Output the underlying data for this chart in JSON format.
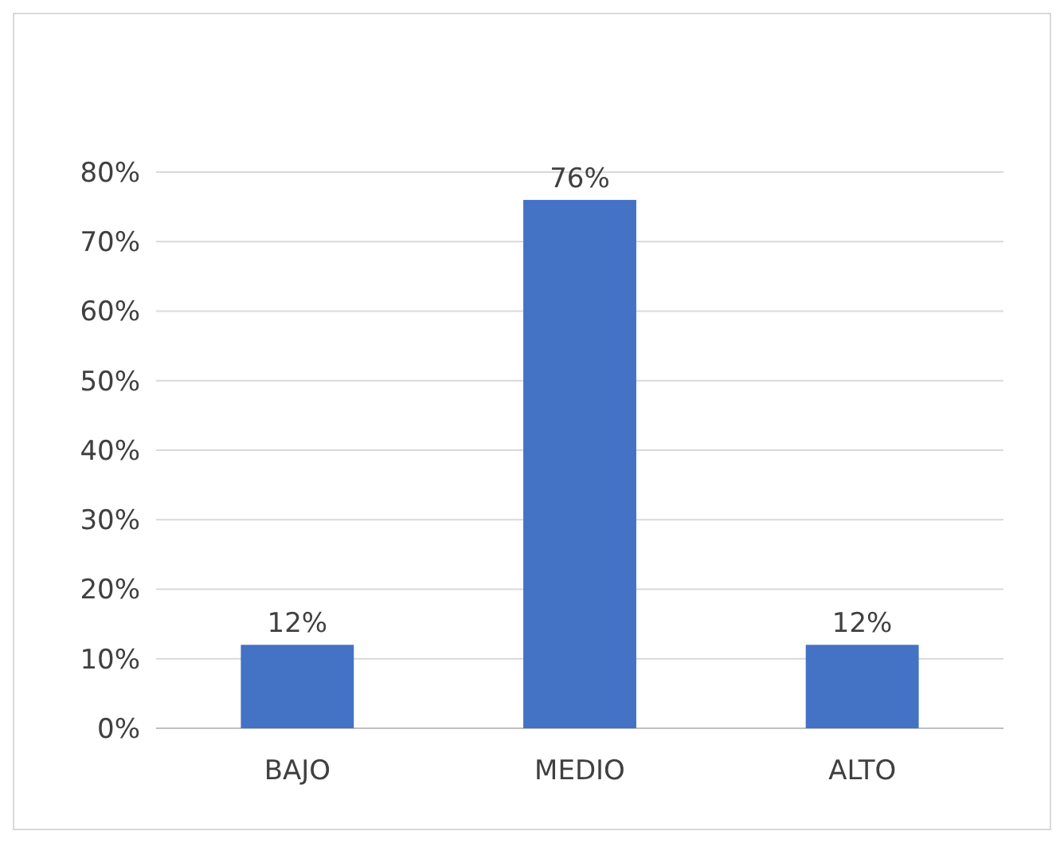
{
  "chart_data": {
    "type": "bar",
    "categories": [
      "BAJO",
      "MEDIO",
      "ALTO"
    ],
    "values": [
      12,
      76,
      12
    ],
    "color": "#4472c4",
    "value_labels": [
      "12%",
      "76%",
      "12%"
    ],
    "ylim": [
      0,
      80
    ],
    "yticks": [
      {
        "value": 0,
        "label": "0%"
      },
      {
        "value": 10,
        "label": "10%"
      },
      {
        "value": 20,
        "label": "20%"
      },
      {
        "value": 30,
        "label": "30%"
      },
      {
        "value": 40,
        "label": "40%"
      },
      {
        "value": 50,
        "label": "50%"
      },
      {
        "value": 60,
        "label": "60%"
      },
      {
        "value": 70,
        "label": "70%"
      },
      {
        "value": 80,
        "label": "80%"
      }
    ],
    "grid": "y"
  }
}
